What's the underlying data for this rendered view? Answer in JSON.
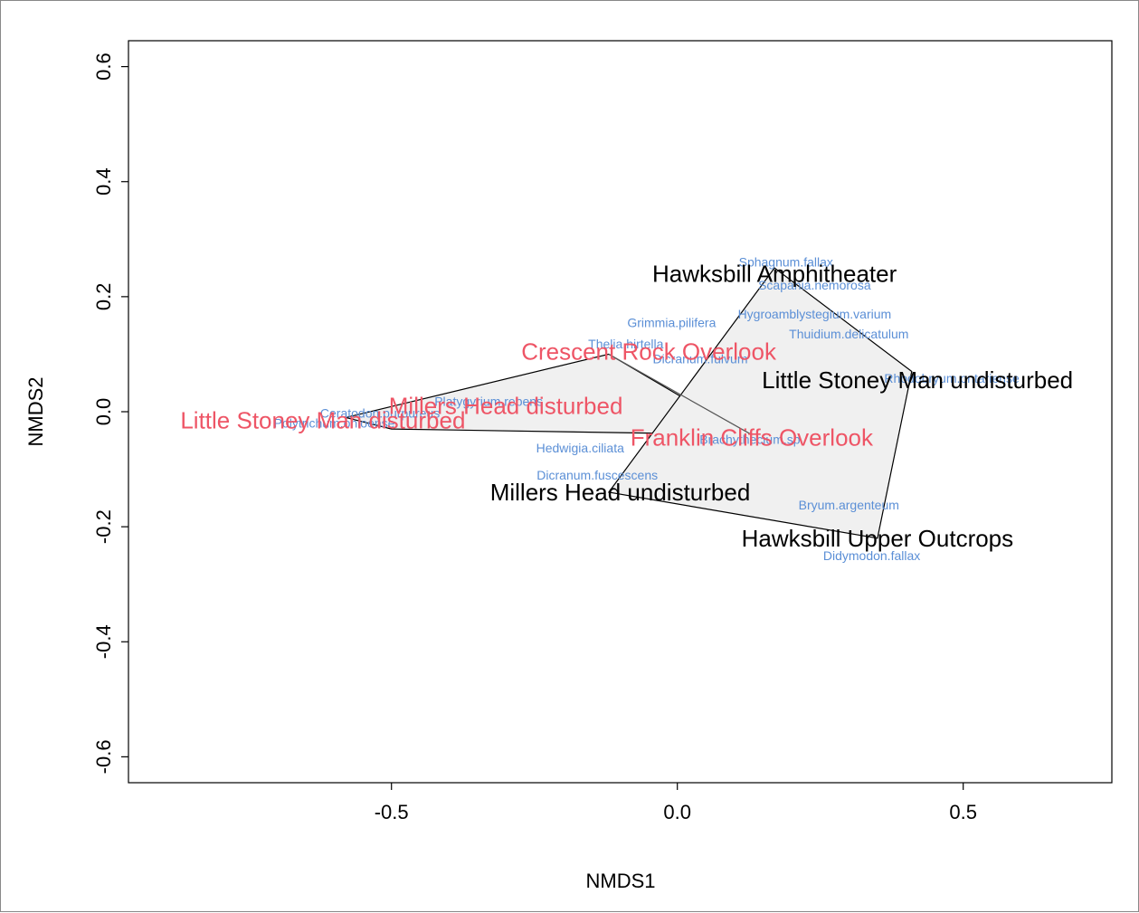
{
  "chart_data": {
    "type": "scatter",
    "xlabel": "NMDS1",
    "ylabel": "NMDS2",
    "xlim": [
      -0.96,
      0.76
    ],
    "ylim": [
      -0.645,
      0.645
    ],
    "x_ticks": [
      -0.5,
      0.0,
      0.5
    ],
    "x_tick_labels": [
      "-0.5",
      "0.0",
      "0.5"
    ],
    "y_ticks": [
      -0.6,
      -0.4,
      -0.2,
      0.0,
      0.2,
      0.4,
      0.6
    ],
    "y_tick_labels": [
      "-0.6",
      "-0.4",
      "-0.2",
      "0.0",
      "0.2",
      "0.4",
      "0.6"
    ],
    "grid": false,
    "colors": {
      "undisturbed": "#000000",
      "disturbed": "#ee5566",
      "species": "#5b8fd6",
      "hull_fill": "#f0f0f0",
      "hull_stroke": "#000000",
      "plot_border": "#000000"
    },
    "hull": [
      [
        0.17,
        0.25
      ],
      [
        0.41,
        0.07
      ],
      [
        0.35,
        -0.22
      ],
      [
        -0.12,
        -0.14
      ]
    ],
    "segments": [
      [
        [
          -0.12,
          0.1
        ],
        [
          0.13,
          -0.04
        ]
      ]
    ],
    "polygon_disturbed": [
      [
        -0.58,
        -0.01
      ],
      [
        -0.12,
        0.1
      ],
      [
        0.12,
        -0.04
      ],
      [
        -0.5,
        -0.03
      ]
    ],
    "undisturbed_sites": [
      {
        "name": "Hawksbill Amphitheater",
        "x": 0.17,
        "y": 0.24
      },
      {
        "name": "Little Stoney Man undisturbed",
        "x": 0.42,
        "y": 0.055
      },
      {
        "name": "Millers Head undisturbed",
        "x": -0.1,
        "y": -0.14
      },
      {
        "name": "Hawksbill Upper Outcrops",
        "x": 0.35,
        "y": -0.22
      }
    ],
    "disturbed_sites": [
      {
        "name": "Crescent Rock Overlook",
        "x": -0.05,
        "y": 0.105
      },
      {
        "name": "Millers Head disturbed",
        "x": -0.3,
        "y": 0.01
      },
      {
        "name": "Little Stoney Man disturbed",
        "x": -0.62,
        "y": -0.015
      },
      {
        "name": "Franklin Cliffs Overlook",
        "x": 0.13,
        "y": -0.045
      }
    ],
    "species": [
      {
        "name": "Sphagnum.fallax",
        "x": 0.19,
        "y": 0.26
      },
      {
        "name": "Scapania.nemorosa",
        "x": 0.24,
        "y": 0.22
      },
      {
        "name": "Hygroamblystegium.varium",
        "x": 0.24,
        "y": 0.17
      },
      {
        "name": "Grimmia.pilifera",
        "x": -0.01,
        "y": 0.155
      },
      {
        "name": "Thuidium.delicatulum",
        "x": 0.3,
        "y": 0.135
      },
      {
        "name": "Thelia.hirtella",
        "x": -0.09,
        "y": 0.118
      },
      {
        "name": "Dicranum.fulvum",
        "x": 0.04,
        "y": 0.092
      },
      {
        "name": "Rhodobryum.ontariense",
        "x": 0.48,
        "y": 0.058
      },
      {
        "name": "Platygyrium.repens",
        "x": -0.33,
        "y": 0.018
      },
      {
        "name": "Ceratodon.purpureus",
        "x": -0.52,
        "y": -0.002
      },
      {
        "name": "Polytrichum.ohioense",
        "x": -0.6,
        "y": -0.02
      },
      {
        "name": "Brachythecium.sp.",
        "x": 0.13,
        "y": -0.048
      },
      {
        "name": "Hedwigia.ciliata",
        "x": -0.17,
        "y": -0.063
      },
      {
        "name": "Dicranum.fuscescens",
        "x": -0.14,
        "y": -0.11
      },
      {
        "name": "Bryum.argenteum",
        "x": 0.3,
        "y": -0.162
      },
      {
        "name": "Didymodon.fallax",
        "x": 0.34,
        "y": -0.25
      }
    ]
  }
}
